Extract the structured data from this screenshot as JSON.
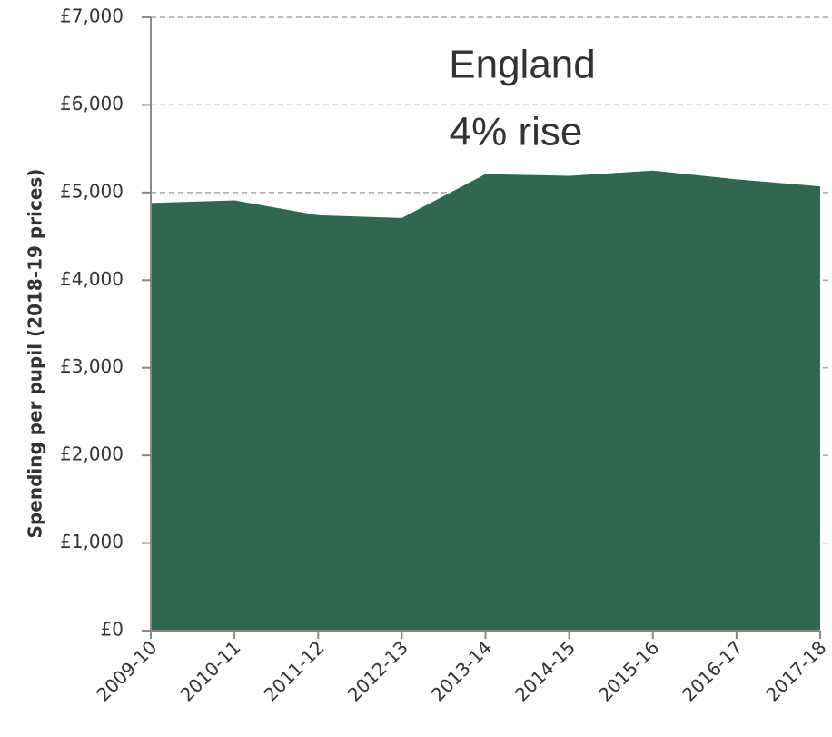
{
  "chart_data": {
    "type": "area",
    "categories": [
      "2009-10",
      "2010-11",
      "2011-12",
      "2012-13",
      "2013-14",
      "2014-15",
      "2015-16",
      "2016-17",
      "2017-18"
    ],
    "series": [
      {
        "values": [
          4880,
          4910,
          4740,
          4710,
          5210,
          5190,
          5250,
          5150,
          5070
        ]
      }
    ],
    "ylabel": "Spending per pupil (2018-19 prices)",
    "yticks": [
      "£0",
      "£1,000",
      "£2,000",
      "£3,000",
      "£4,000",
      "£5,000",
      "£6,000",
      "£7,000"
    ],
    "ylim": [
      0,
      7000
    ],
    "annotations": [
      "England",
      "4% rise"
    ],
    "grid": true,
    "colors": {
      "fill": "#336651",
      "grid": "#a6a6a6",
      "axis": "#888888"
    }
  }
}
